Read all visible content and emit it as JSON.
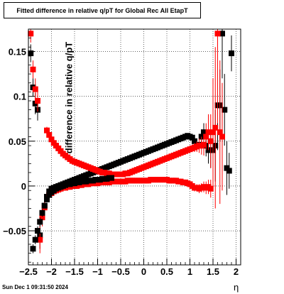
{
  "title": "Fitted difference in relative q/pT for Global Rec All EtapT",
  "timestamp": "Sun Dec  1 09:31:50 2024",
  "chart_data": {
    "type": "scatter",
    "title": "Fitted difference in relative q/pT for Global Rec All EtapT",
    "xlabel": "η",
    "ylabel": "difference in relative q/pT",
    "xlim": [
      -2.5,
      2.1
    ],
    "ylim": [
      -0.088,
      0.175
    ],
    "grid": true,
    "x_ticks": [
      -2.5,
      -2,
      -1.5,
      -1,
      -0.5,
      0,
      0.5,
      1,
      1.5,
      2
    ],
    "x_tick_labels": [
      "−2.5",
      "−2",
      "−1.5",
      "−1",
      "−0.5",
      "0",
      "0.5",
      "1",
      "1.5",
      "2"
    ],
    "y_ticks": [
      -0.05,
      0,
      0.05,
      0.1,
      0.15
    ],
    "y_tick_labels": [
      "−0.05",
      "0",
      "0.05",
      "0.1",
      "0.15"
    ],
    "series": [
      {
        "color": "#000000",
        "x": [
          -2.45,
          -2.4,
          -2.35,
          -2.3,
          -2.25,
          -2.2,
          -2.15,
          -2.1,
          -2.05,
          -2.0,
          -1.95,
          -1.9,
          -1.85,
          -1.8,
          -1.75,
          -1.7,
          -1.65,
          -1.6,
          -1.55,
          -1.5,
          -1.45,
          -1.4,
          -1.35,
          -1.3,
          -1.25,
          -1.2,
          -1.15,
          -1.1,
          -1.05,
          -1.0,
          -0.95,
          -0.9,
          -0.85,
          -0.8,
          -0.75,
          -0.7,
          -0.65,
          -0.6,
          -0.55,
          -0.5,
          -0.45,
          -0.4,
          -0.35,
          -0.3,
          -0.25,
          -0.2,
          -0.15,
          -0.1,
          -0.05,
          0.0,
          0.05,
          0.1,
          0.15,
          0.2,
          0.25,
          0.3,
          0.35,
          0.4,
          0.45,
          0.5,
          0.55,
          0.6,
          0.65,
          0.7,
          0.75,
          0.8,
          0.85,
          0.9,
          0.95,
          1.0,
          1.05,
          1.1,
          1.15,
          1.2,
          1.25,
          1.3,
          1.35,
          1.4,
          1.45,
          1.5,
          1.55,
          1.6,
          1.65,
          1.7,
          1.75,
          1.8,
          1.85,
          1.9
        ],
        "y": [
          0.148,
          0.11,
          0.092,
          0.085,
          -0.055,
          -0.032,
          -0.022,
          -0.012,
          -0.006,
          -0.003,
          -0.002,
          -0.001,
          0.0,
          0.001,
          0.002,
          0.003,
          0.004,
          0.005,
          0.006,
          0.007,
          0.008,
          0.009,
          0.01,
          0.011,
          0.012,
          0.013,
          0.014,
          0.015,
          0.016,
          0.017,
          0.018,
          0.019,
          0.02,
          0.021,
          0.022,
          0.023,
          0.024,
          0.025,
          0.026,
          0.027,
          0.028,
          0.029,
          0.03,
          0.031,
          0.032,
          0.033,
          0.034,
          0.035,
          0.036,
          0.037,
          0.038,
          0.039,
          0.04,
          0.041,
          0.042,
          0.043,
          0.044,
          0.045,
          0.046,
          0.047,
          0.048,
          0.049,
          0.05,
          0.051,
          0.052,
          0.053,
          0.054,
          0.055,
          0.056,
          0.055,
          0.054,
          0.05,
          0.045,
          0.046,
          0.055,
          0.06,
          0.045,
          0.04,
          0.04,
          0.04,
          0.045,
          0.09,
          0.09,
          0.17,
          0.085,
          0.02,
          0.017,
          0.148
        ],
        "err": [
          0.01,
          0.01,
          0.012,
          0.012,
          0.015,
          0.01,
          0.006,
          0.004,
          0.003,
          0.002,
          0.002,
          0.002,
          0.002,
          0.002,
          0.002,
          0.002,
          0.002,
          0.002,
          0.002,
          0.002,
          0.002,
          0.002,
          0.002,
          0.002,
          0.002,
          0.002,
          0.002,
          0.002,
          0.002,
          0.002,
          0.002,
          0.002,
          0.002,
          0.002,
          0.002,
          0.002,
          0.002,
          0.002,
          0.002,
          0.002,
          0.002,
          0.002,
          0.002,
          0.002,
          0.002,
          0.002,
          0.002,
          0.002,
          0.002,
          0.002,
          0.002,
          0.002,
          0.002,
          0.002,
          0.002,
          0.002,
          0.002,
          0.002,
          0.002,
          0.002,
          0.002,
          0.002,
          0.002,
          0.002,
          0.002,
          0.002,
          0.002,
          0.002,
          0.002,
          0.002,
          0.003,
          0.004,
          0.005,
          0.006,
          0.008,
          0.01,
          0.012,
          0.015,
          0.02,
          0.03,
          0.04,
          0.05,
          0.04,
          0.05,
          0.04,
          0.03,
          0.02,
          0.02
        ]
      },
      {
        "color": "#ff0000",
        "x": [
          -2.45,
          -2.4,
          -2.35,
          -2.3,
          -2.25,
          -2.2,
          -2.15,
          -2.1,
          -2.05,
          -2.0,
          -1.95,
          -1.9,
          -1.85,
          -1.8,
          -1.75,
          -1.7,
          -1.65,
          -1.6,
          -1.55,
          -1.5,
          -1.45,
          -1.4,
          -1.35,
          -1.3,
          -1.25,
          -1.2,
          -1.15,
          -1.1,
          -1.05,
          -1.0,
          -0.95,
          -0.9,
          -0.85,
          -0.8,
          -0.75,
          -0.7,
          -0.65,
          -0.6,
          -0.55,
          -0.5,
          -0.45,
          -0.4,
          -0.35,
          -0.3,
          -0.25,
          -0.2,
          -0.15,
          -0.1,
          -0.05,
          0.0,
          0.05,
          0.1,
          0.15,
          0.2,
          0.25,
          0.3,
          0.35,
          0.4,
          0.45,
          0.5,
          0.55,
          0.6,
          0.65,
          0.7,
          0.75,
          0.8,
          0.85,
          0.9,
          0.95,
          1.0,
          1.05,
          1.1,
          1.15,
          1.2,
          1.25,
          1.3,
          1.35,
          1.4,
          1.45,
          1.5,
          1.55,
          1.6,
          1.65,
          1.7
        ],
        "y": [
          0.17,
          0.13,
          0.108,
          0.095,
          -0.06,
          -0.035,
          -0.024,
          0.062,
          0.057,
          0.052,
          0.048,
          0.045,
          0.042,
          0.039,
          0.036,
          0.034,
          0.032,
          0.03,
          0.028,
          0.027,
          0.026,
          0.025,
          0.024,
          0.023,
          0.022,
          0.021,
          0.02,
          0.019,
          0.018,
          0.017,
          0.016,
          0.015,
          0.015,
          0.014,
          0.014,
          0.013,
          0.013,
          0.013,
          0.013,
          0.013,
          0.013,
          0.014,
          0.014,
          0.015,
          0.016,
          0.017,
          0.018,
          0.019,
          0.02,
          0.021,
          0.022,
          0.023,
          0.024,
          0.025,
          0.026,
          0.027,
          0.028,
          0.029,
          0.03,
          0.031,
          0.032,
          0.033,
          0.034,
          0.035,
          0.036,
          0.037,
          0.038,
          0.039,
          0.04,
          0.041,
          0.042,
          0.043,
          0.044,
          0.045,
          0.045,
          0.046,
          0.055,
          0.06,
          0.05,
          0.06,
          0.065,
          0.17,
          0.06,
          0.055
        ],
        "err": [
          0.01,
          0.01,
          0.012,
          0.012,
          0.015,
          0.01,
          0.006,
          0.004,
          0.003,
          0.002,
          0.002,
          0.002,
          0.002,
          0.002,
          0.002,
          0.002,
          0.002,
          0.002,
          0.002,
          0.002,
          0.002,
          0.002,
          0.002,
          0.002,
          0.002,
          0.002,
          0.002,
          0.002,
          0.002,
          0.002,
          0.002,
          0.002,
          0.002,
          0.002,
          0.002,
          0.002,
          0.002,
          0.002,
          0.002,
          0.002,
          0.002,
          0.002,
          0.002,
          0.002,
          0.002,
          0.002,
          0.002,
          0.002,
          0.002,
          0.002,
          0.002,
          0.002,
          0.002,
          0.002,
          0.002,
          0.002,
          0.002,
          0.002,
          0.002,
          0.002,
          0.002,
          0.002,
          0.002,
          0.002,
          0.002,
          0.002,
          0.002,
          0.002,
          0.002,
          0.003,
          0.004,
          0.005,
          0.006,
          0.008,
          0.01,
          0.012,
          0.015,
          0.02,
          0.03,
          0.06,
          0.09,
          0.1,
          0.08,
          0.06
        ]
      },
      {
        "color": "#ff0000",
        "x": [
          -2.05,
          -2.0,
          -1.95,
          -1.9,
          -1.85,
          -1.8,
          -1.75,
          -1.7,
          -1.65,
          -1.6,
          -1.55,
          -1.5,
          -1.45,
          -1.4,
          -1.35,
          -1.3,
          -1.25,
          -1.2,
          -1.15,
          -1.1,
          -1.05,
          -1.0,
          -0.95,
          -0.9,
          -0.85,
          -0.8,
          -0.75,
          -0.7,
          -0.65,
          -0.6,
          -0.55,
          -0.5,
          -0.45,
          -0.4,
          -0.35,
          -0.3,
          -0.25,
          -0.2,
          -0.15,
          -0.1,
          -0.05,
          0.0,
          0.05,
          0.1,
          0.15,
          0.2,
          0.25,
          0.3,
          0.35,
          0.4,
          0.45,
          0.5,
          0.55,
          0.6,
          0.65,
          0.7,
          0.75,
          0.8,
          0.85,
          0.9,
          0.95,
          1.0,
          1.05,
          1.1,
          1.15,
          1.2,
          1.25,
          1.3,
          1.35,
          1.4,
          1.45
        ],
        "y": [
          -0.01,
          -0.008,
          -0.006,
          -0.005,
          -0.004,
          -0.003,
          -0.002,
          -0.002,
          -0.001,
          -0.001,
          0.0,
          0.0,
          0.0,
          0.001,
          0.001,
          0.002,
          0.002,
          0.002,
          0.003,
          0.003,
          0.003,
          0.003,
          0.004,
          0.004,
          0.004,
          0.004,
          0.004,
          0.005,
          0.005,
          0.005,
          0.005,
          0.005,
          0.005,
          0.005,
          0.006,
          0.006,
          0.006,
          0.006,
          0.006,
          0.006,
          0.006,
          0.006,
          0.006,
          0.006,
          0.007,
          0.007,
          0.007,
          0.007,
          0.007,
          0.007,
          0.007,
          0.007,
          0.006,
          0.006,
          0.006,
          0.006,
          0.005,
          0.005,
          0.004,
          0.004,
          0.003,
          0.002,
          0.0,
          -0.002,
          -0.002,
          -0.003,
          -0.002,
          -0.001,
          -0.002,
          -0.001,
          -0.003
        ],
        "err": [
          0.003,
          0.002,
          0.002,
          0.002,
          0.002,
          0.002,
          0.002,
          0.002,
          0.002,
          0.002,
          0.002,
          0.002,
          0.002,
          0.002,
          0.002,
          0.002,
          0.002,
          0.002,
          0.002,
          0.002,
          0.002,
          0.002,
          0.002,
          0.002,
          0.002,
          0.002,
          0.002,
          0.002,
          0.002,
          0.002,
          0.002,
          0.002,
          0.002,
          0.002,
          0.002,
          0.002,
          0.002,
          0.002,
          0.002,
          0.002,
          0.002,
          0.002,
          0.002,
          0.002,
          0.002,
          0.002,
          0.002,
          0.002,
          0.002,
          0.002,
          0.002,
          0.002,
          0.002,
          0.002,
          0.002,
          0.002,
          0.002,
          0.002,
          0.002,
          0.002,
          0.002,
          0.003,
          0.003,
          0.004,
          0.004,
          0.005,
          0.005,
          0.006,
          0.007,
          0.008,
          0.01
        ]
      },
      {
        "color": "#000000",
        "x": [
          -2.4,
          -2.35,
          -2.3,
          -2.25,
          -2.2,
          -2.15,
          -2.1,
          -2.05,
          -2.0,
          -1.95,
          -1.9,
          -1.85,
          -1.8,
          -1.75,
          -1.7,
          -1.65,
          -1.6,
          -1.55,
          -1.5,
          -1.45,
          -1.4,
          -1.35,
          -1.3,
          -1.25,
          -1.2,
          -1.15,
          -1.1,
          -1.05,
          -1.0,
          -0.95,
          -0.9,
          -0.85,
          -0.8,
          -0.75,
          -0.7
        ],
        "y": [
          -0.07,
          -0.06,
          -0.05,
          -0.04,
          -0.03,
          -0.022,
          -0.015,
          -0.01,
          -0.007,
          -0.005,
          -0.003,
          -0.002,
          -0.001,
          0.0,
          0.001,
          0.002,
          0.002,
          0.003,
          0.003,
          0.004,
          0.004,
          0.005,
          0.005,
          0.005,
          0.006,
          0.006,
          0.006,
          0.007,
          0.007,
          0.007,
          0.008,
          0.008,
          0.008,
          0.009,
          0.009
        ],
        "err": [
          0.005,
          0.005,
          0.005,
          0.005,
          0.004,
          0.003,
          0.003,
          0.002,
          0.002,
          0.002,
          0.002,
          0.002,
          0.002,
          0.002,
          0.002,
          0.002,
          0.002,
          0.002,
          0.002,
          0.002,
          0.002,
          0.002,
          0.002,
          0.002,
          0.002,
          0.002,
          0.002,
          0.002,
          0.002,
          0.002,
          0.002,
          0.002,
          0.002,
          0.002,
          0.002
        ]
      }
    ]
  }
}
